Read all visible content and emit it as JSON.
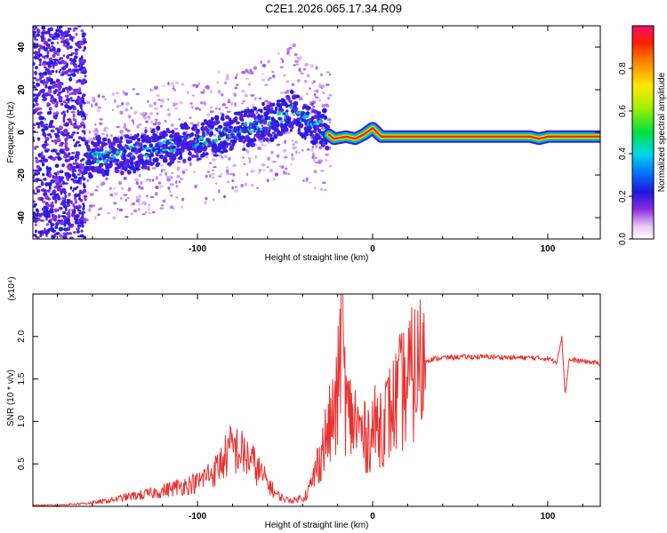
{
  "title": "C2E1.2026.065.17.34.R09",
  "chart_data": [
    {
      "type": "heatmap",
      "name": "spectrogram",
      "title": "C2E1.2026.065.17.34.R09",
      "xlabel": "Height of straight line (km)",
      "ylabel": "Frequency (Hz)",
      "xlim": [
        -194,
        130
      ],
      "ylim": [
        -50,
        50
      ],
      "xticks": [
        -100,
        0,
        100
      ],
      "yticks": [
        -40,
        -20,
        0,
        20,
        40
      ],
      "colorbar": {
        "label": "Normalized spectral amplitude",
        "range": [
          0.0,
          1.0
        ],
        "ticks": [
          0.0,
          0.2,
          0.4,
          0.6,
          0.8
        ]
      },
      "ridge": {
        "x": [
          -160,
          -140,
          -120,
          -100,
          -80,
          -60,
          -45,
          -38,
          -30,
          -22,
          -15,
          -10,
          -5,
          0,
          5,
          20,
          40,
          60,
          80,
          90,
          95,
          100,
          105,
          110,
          130
        ],
        "frequency": [
          -12,
          -10,
          -7,
          -4,
          0,
          5,
          11,
          5,
          2,
          -3,
          -2,
          -3,
          -1,
          2,
          -2,
          -2,
          -2,
          -2,
          -2,
          -2,
          -3,
          -2,
          -2,
          -2,
          -2
        ]
      }
    },
    {
      "type": "line",
      "name": "snr",
      "xlabel": "Height of straight line (km)",
      "ylabel": "SNR (10 * v/v)",
      "y_multiplier": "(x10⁴)",
      "xlim": [
        -194,
        130
      ],
      "ylim": [
        0,
        2.5
      ],
      "xticks": [
        -100,
        0,
        100
      ],
      "yticks": [
        0.5,
        1.0,
        1.5,
        2.0
      ],
      "series": [
        {
          "name": "SNR",
          "color": "#e8302e",
          "x": [
            -194,
            -180,
            -170,
            -160,
            -150,
            -140,
            -130,
            -120,
            -110,
            -100,
            -95,
            -90,
            -85,
            -80,
            -75,
            -70,
            -65,
            -60,
            -55,
            -50,
            -45,
            -40,
            -35,
            -30,
            -25,
            -20,
            -18,
            -15,
            -10,
            -5,
            0,
            5,
            10,
            15,
            20,
            25,
            30,
            40,
            50,
            60,
            70,
            80,
            90,
            100,
            105,
            108,
            110,
            112,
            115,
            120,
            130
          ],
          "values": [
            0.01,
            0.01,
            0.02,
            0.03,
            0.05,
            0.08,
            0.1,
            0.13,
            0.17,
            0.2,
            0.26,
            0.3,
            0.4,
            0.5,
            0.45,
            0.4,
            0.3,
            0.2,
            0.1,
            0.06,
            0.05,
            0.08,
            0.25,
            0.6,
            0.9,
            1.2,
            2.4,
            1.1,
            1.0,
            0.8,
            0.9,
            1.0,
            1.1,
            1.3,
            1.45,
            1.6,
            1.72,
            1.75,
            1.76,
            1.76,
            1.76,
            1.75,
            1.75,
            1.74,
            1.7,
            2.0,
            1.3,
            1.72,
            1.72,
            1.71,
            1.68
          ]
        }
      ]
    }
  ]
}
